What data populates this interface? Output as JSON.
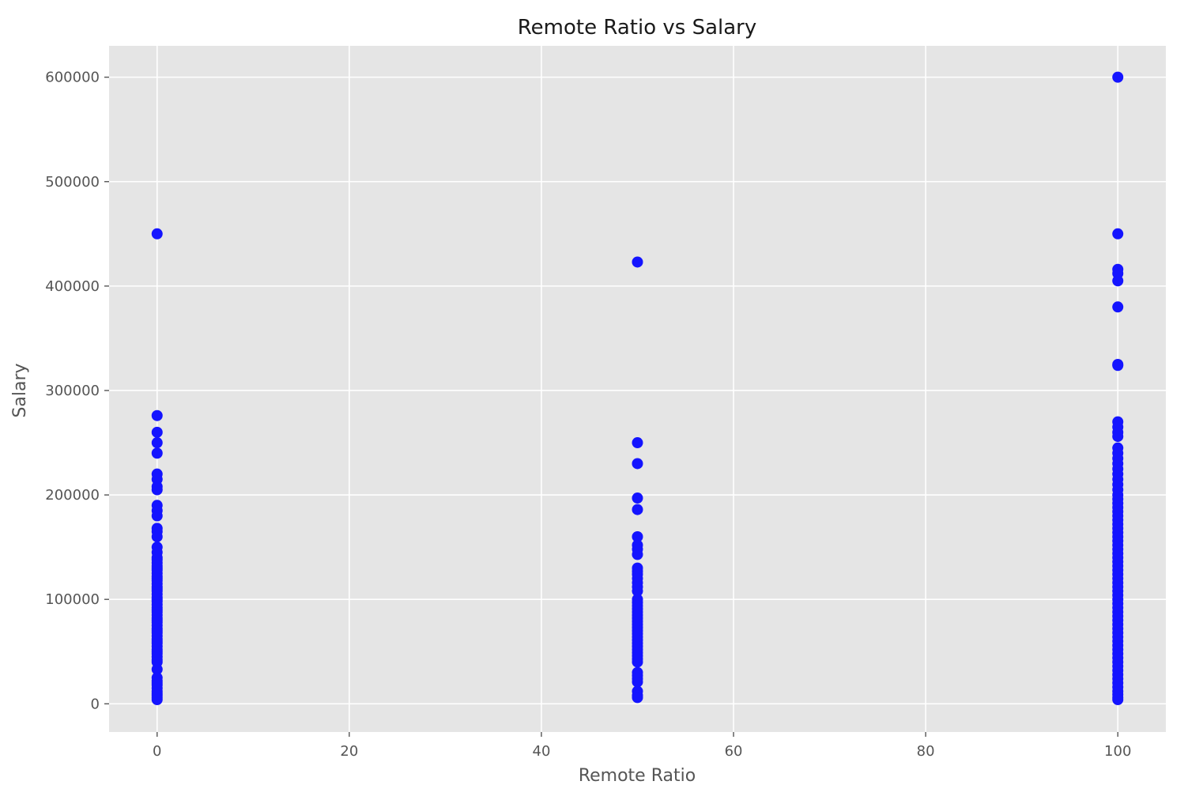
{
  "chart_data": {
    "type": "scatter",
    "title": "Remote Ratio vs Salary",
    "xlabel": "Remote Ratio",
    "ylabel": "Salary",
    "xlim": [
      -5,
      105
    ],
    "ylim": [
      -27000,
      630000
    ],
    "x_ticks": [
      0,
      20,
      40,
      60,
      80,
      100
    ],
    "y_ticks": [
      0,
      100000,
      200000,
      300000,
      400000,
      500000,
      600000
    ],
    "grid": true,
    "legend": "none",
    "colors": {
      "point": "#1414ff",
      "plot_background": "#e5e5e5",
      "grid": "#ffffff",
      "text": "#555555",
      "title": "#1a1a1a"
    },
    "series": [
      {
        "x": 0,
        "y": [
          450000,
          276000,
          260000,
          250000,
          240000,
          220000,
          215000,
          208000,
          205000,
          190000,
          185000,
          180000,
          168000,
          165000,
          160000,
          150000,
          145000,
          140000,
          138000,
          135000,
          132000,
          130000,
          128000,
          125000,
          122000,
          120000,
          118000,
          115000,
          112000,
          110000,
          108000,
          105000,
          102000,
          100000,
          98000,
          95000,
          92000,
          90000,
          88000,
          85000,
          82000,
          80000,
          78000,
          75000,
          72000,
          70000,
          68000,
          65000,
          62000,
          60000,
          58000,
          55000,
          52000,
          50000,
          48000,
          45000,
          42000,
          40000,
          33000,
          25000,
          22000,
          20000,
          18000,
          15000,
          12000,
          10000,
          8000,
          6000,
          4000
        ]
      },
      {
        "x": 50,
        "y": [
          423000,
          250000,
          230000,
          197000,
          186000,
          160000,
          152000,
          148000,
          143000,
          130000,
          127000,
          124000,
          120000,
          116000,
          112000,
          108000,
          100000,
          97000,
          94000,
          91000,
          88000,
          85000,
          82000,
          79000,
          76000,
          73000,
          70000,
          67000,
          64000,
          61000,
          58000,
          55000,
          52000,
          49000,
          46000,
          43000,
          40000,
          30000,
          27000,
          24000,
          21000,
          12000,
          8000,
          6000
        ]
      },
      {
        "x": 100,
        "y": [
          600000,
          450000,
          416000,
          412000,
          405000,
          380000,
          325000,
          324000,
          270000,
          265000,
          260000,
          256000,
          245000,
          240000,
          235000,
          230000,
          225000,
          220000,
          215000,
          210000,
          205000,
          200000,
          196000,
          192000,
          188000,
          184000,
          180000,
          176000,
          172000,
          168000,
          164000,
          160000,
          156000,
          152000,
          148000,
          144000,
          140000,
          136000,
          132000,
          128000,
          124000,
          120000,
          116000,
          112000,
          108000,
          104000,
          100000,
          96000,
          92000,
          88000,
          84000,
          80000,
          76000,
          72000,
          68000,
          64000,
          60000,
          56000,
          52000,
          48000,
          44000,
          40000,
          36000,
          32000,
          28000,
          24000,
          20000,
          16000,
          12000,
          9000,
          6000,
          4000
        ]
      }
    ]
  }
}
